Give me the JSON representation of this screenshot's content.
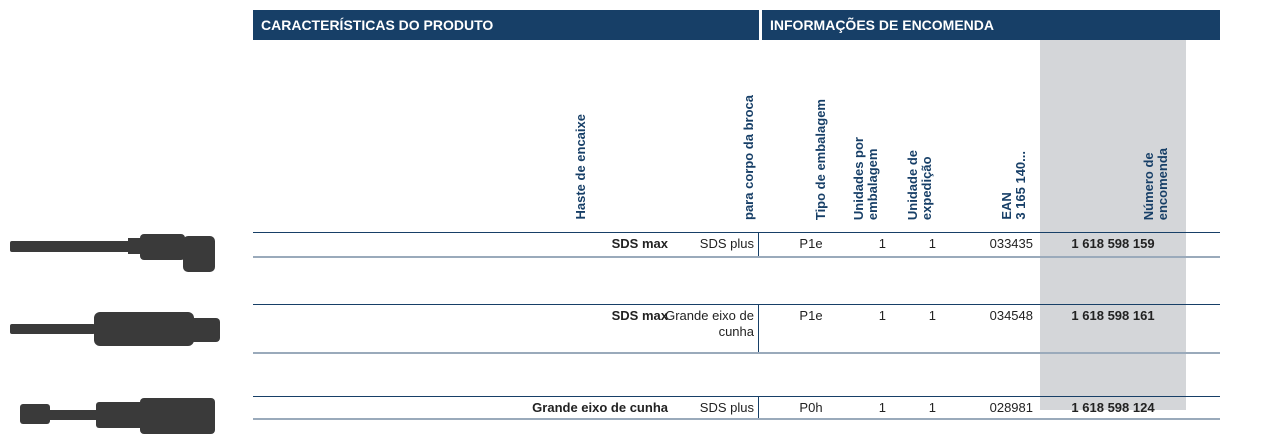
{
  "table": {
    "sections": [
      "CARACTERÍSTICAS DO PRODUTO",
      "INFORMAÇÕES DE ENCOMENDA"
    ],
    "columns": [
      [
        "Haste de encaixe"
      ],
      [
        "para corpo da broca"
      ],
      [
        "Tipo de embalagem"
      ],
      [
        "Unidades por",
        "embalagem"
      ],
      [
        "Unidade de",
        "expedição"
      ],
      [
        "EAN",
        "3 165 140..."
      ],
      [
        "Número de",
        "encomenda"
      ]
    ],
    "rows": [
      [
        "SDS max",
        "SDS plus",
        "P1e",
        "1",
        "1",
        "033435",
        "1 618 598 159"
      ],
      [
        "SDS max",
        "Grande eixo de cunha",
        "P1e",
        "1",
        "1",
        "034548",
        "1 618 598 161"
      ],
      [
        "Grande eixo de cunha",
        "SDS plus",
        "P0h",
        "1",
        "1",
        "028981",
        "1 618 598 124"
      ]
    ]
  }
}
